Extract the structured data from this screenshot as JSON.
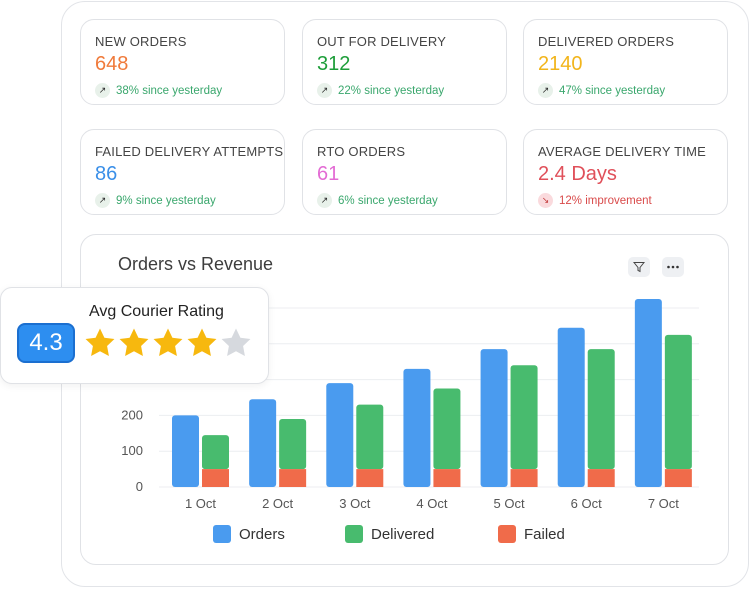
{
  "cards": [
    {
      "label": "NEW ORDERS",
      "value": "648",
      "value_color": "#f07a3a",
      "trend_text": "38% since yesterday",
      "trend_dir": "up",
      "trend_color": "#3aa76d"
    },
    {
      "label": "OUT FOR DELIVERY",
      "value": "312",
      "value_color": "#1e9e3a",
      "trend_text": "22% since yesterday",
      "trend_dir": "up",
      "trend_color": "#3aa76d"
    },
    {
      "label": "DELIVERED ORDERS",
      "value": "2140",
      "value_color": "#f2b51c",
      "trend_text": "47% since yesterday",
      "trend_dir": "up",
      "trend_color": "#3aa76d"
    },
    {
      "label": "FAILED DELIVERY ATTEMPTS",
      "value": "86",
      "value_color": "#3a8fe8",
      "trend_text": "9% since yesterday",
      "trend_dir": "up",
      "trend_color": "#3aa76d"
    },
    {
      "label": "RTO ORDERS",
      "value": "61",
      "value_color": "#e36bd4",
      "trend_text": "6% since yesterday",
      "trend_dir": "up",
      "trend_color": "#3aa76d"
    },
    {
      "label": "AVERAGE DELIVERY TIME",
      "value": "2.4 Days",
      "value_color": "#e0505a",
      "trend_text": "12% improvement",
      "trend_dir": "down",
      "trend_color": "#d94a4a"
    }
  ],
  "chart": {
    "title": "Orders vs Revenue",
    "filter_icon": "filter-icon",
    "more_icon": "more-horizontal-icon"
  },
  "chart_data": {
    "type": "bar",
    "categories": [
      "1 Oct",
      "2 Oct",
      "3 Oct",
      "4 Oct",
      "5 Oct",
      "6 Oct",
      "7 Oct"
    ],
    "series": [
      {
        "name": "Orders",
        "color": "#4a9bef",
        "values": [
          200,
          245,
          290,
          330,
          385,
          445,
          525
        ]
      },
      {
        "name": "Delivered",
        "color": "#48bb6e",
        "values": [
          145,
          190,
          230,
          275,
          340,
          385,
          425
        ]
      },
      {
        "name": "Failed",
        "color": "#f06b4a",
        "values": [
          50,
          50,
          50,
          50,
          50,
          50,
          50
        ]
      }
    ],
    "yticks": [
      0,
      100,
      200
    ],
    "ylim": [
      0,
      540
    ],
    "grid": true,
    "legend_placement": "bottom"
  },
  "rating": {
    "title": "Avg Courier Rating",
    "value": "4.3",
    "stars_filled": 4,
    "stars_total": 5,
    "star_color": "#f7b80e",
    "star_empty_color": "#d6d9de"
  }
}
